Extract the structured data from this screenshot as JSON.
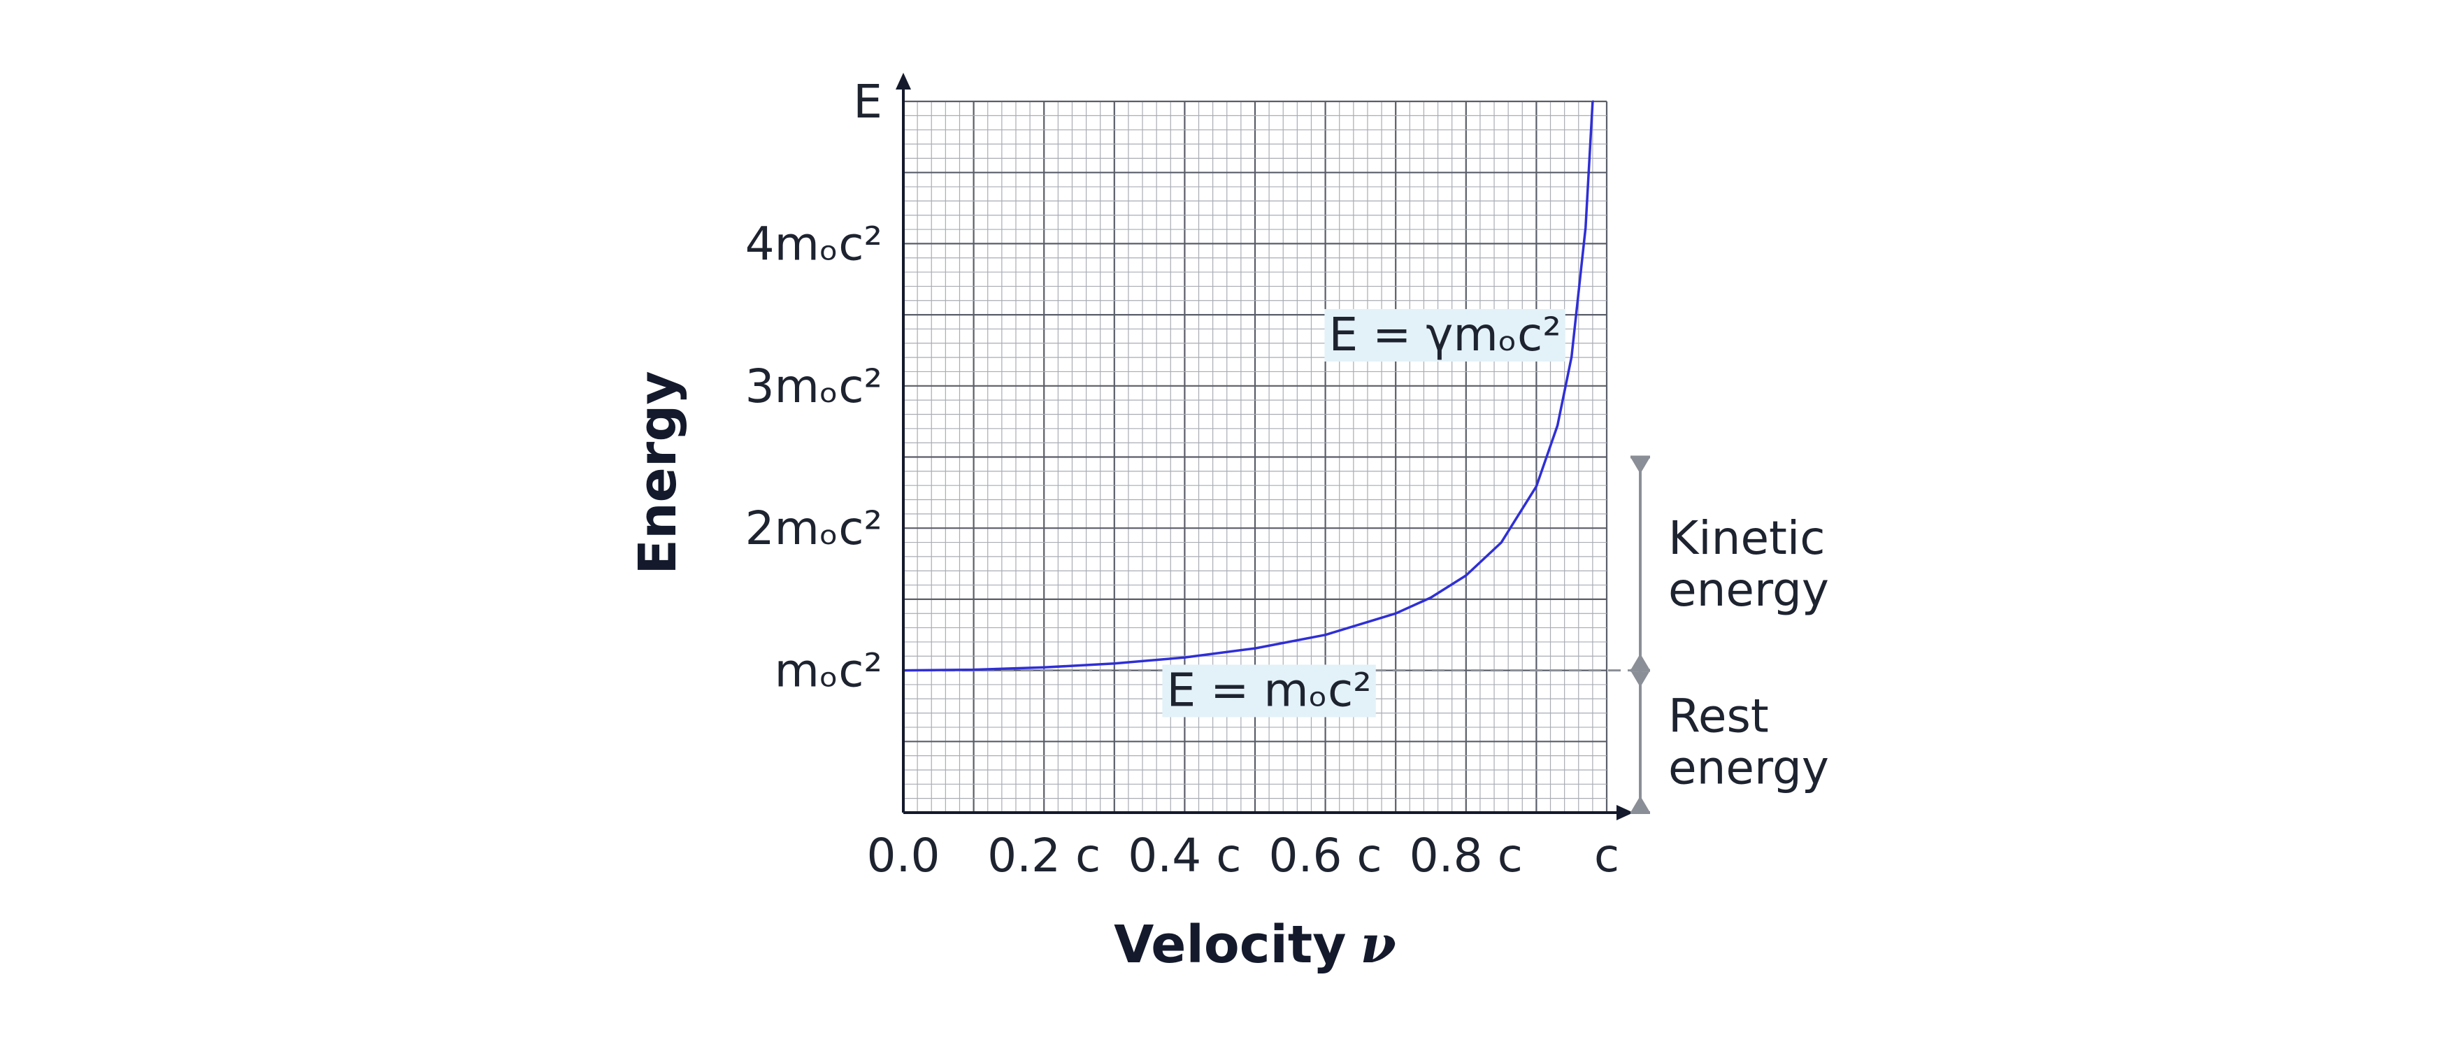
{
  "chart_data": {
    "type": "line",
    "title": "",
    "xlabel": "Velocity",
    "xlabel_symbol": "ν",
    "ylabel": "Energy",
    "xlim": [
      0,
      1
    ],
    "ylim": [
      0,
      5
    ],
    "x_tick_values": [
      0,
      0.2,
      0.4,
      0.6,
      0.8,
      1.0
    ],
    "x_tick_labels": [
      "0.0",
      "0.2 c",
      "0.4 c",
      "0.6 c",
      "0.8 c",
      "c"
    ],
    "y_tick_values": [
      1,
      2,
      3,
      4,
      5
    ],
    "y_tick_labels": [
      "mₒc²",
      "2mₒc²",
      "3mₒc²",
      "4mₒc²",
      "E"
    ],
    "grid": true,
    "series": [
      {
        "color": "#2f2fd6",
        "x": [
          0,
          0.1,
          0.2,
          0.3,
          0.4,
          0.5,
          0.6,
          0.7,
          0.75,
          0.8,
          0.85,
          0.9,
          0.93,
          0.95,
          0.97,
          0.98,
          0.9798
        ],
        "y": [
          1.0,
          1.005,
          1.021,
          1.048,
          1.091,
          1.155,
          1.25,
          1.4,
          1.512,
          1.667,
          1.898,
          2.294,
          2.721,
          3.203,
          4.113,
          5.0,
          5.0
        ]
      }
    ],
    "reference_line": {
      "y": 1,
      "style": "dashed",
      "color": "#8a8e96"
    },
    "annotations": [
      {
        "text": "E = γmₒc²",
        "x": 0.77,
        "y": 3.25
      },
      {
        "text": "E = mₒc²",
        "x": 0.52,
        "y": 0.75
      }
    ],
    "brackets": [
      {
        "label_lines": [
          "Kinetic",
          "energy"
        ],
        "from_y": 1,
        "to_y": 2.5
      },
      {
        "label_lines": [
          "Rest",
          "energy"
        ],
        "from_y": 0,
        "to_y": 1
      }
    ],
    "colors": {
      "curve": "#2f2fd6",
      "grid_major": "#5a5e68",
      "grid_minor": "#a9acb4",
      "axis": "#141a2c",
      "bracket": "#8a8e96",
      "label_bg": "#e3f1f8"
    }
  }
}
